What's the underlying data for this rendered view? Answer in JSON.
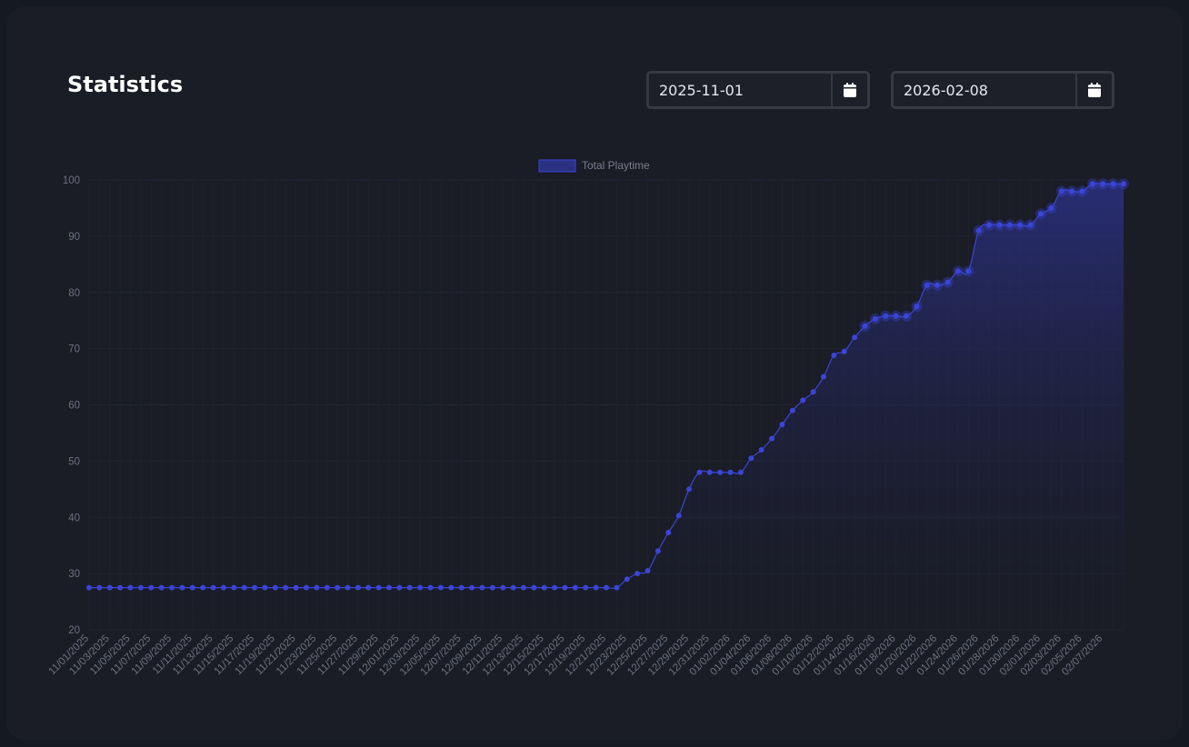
{
  "page": {
    "title": "Statistics"
  },
  "filters": {
    "start_date": "2025-11-01",
    "end_date": "2026-02-08",
    "calendar_icon": "calendar-icon"
  },
  "colors": {
    "background": "#151922",
    "card": "#1a1c26",
    "line": "#3a45d6",
    "point": "#3a45d6",
    "fill_top": "#2a3082",
    "grid": "#232634",
    "tick_text": "#6e7280"
  },
  "chart_data": {
    "type": "area",
    "legend": {
      "position": "top-center",
      "label": "Total Playtime"
    },
    "grid": true,
    "ylim": [
      20,
      100
    ],
    "yticks": [
      20,
      30,
      40,
      50,
      60,
      70,
      80,
      90,
      100
    ],
    "xlabels": [
      "11/01/2025",
      "11/03/2025",
      "11/05/2025",
      "11/07/2025",
      "11/09/2025",
      "11/11/2025",
      "11/13/2025",
      "11/15/2025",
      "11/17/2025",
      "11/19/2025",
      "11/21/2025",
      "11/23/2025",
      "11/25/2025",
      "11/27/2025",
      "11/29/2025",
      "12/01/2025",
      "12/03/2025",
      "12/05/2025",
      "12/07/2025",
      "12/09/2025",
      "12/11/2025",
      "12/13/2025",
      "12/15/2025",
      "12/17/2025",
      "12/19/2025",
      "12/21/2025",
      "12/23/2025",
      "12/25/2025",
      "12/27/2025",
      "12/29/2025",
      "12/31/2025",
      "01/02/2026",
      "01/04/2026",
      "01/06/2026",
      "01/08/2026",
      "01/10/2026",
      "01/12/2026",
      "01/14/2026",
      "01/16/2026",
      "01/18/2026",
      "01/20/2026",
      "01/22/2026",
      "01/24/2026",
      "01/26/2026",
      "01/28/2026",
      "01/30/2026",
      "02/01/2026",
      "02/03/2026",
      "02/05/2026",
      "02/07/2026"
    ],
    "series": [
      {
        "name": "Total Playtime",
        "values": [
          27.5,
          27.5,
          27.5,
          27.5,
          27.5,
          27.5,
          27.5,
          27.5,
          27.5,
          27.5,
          27.5,
          27.5,
          27.5,
          27.5,
          27.5,
          27.5,
          27.5,
          27.5,
          27.5,
          27.5,
          27.5,
          27.5,
          27.5,
          27.5,
          27.5,
          27.5,
          27.5,
          27.5,
          27.5,
          27.5,
          27.5,
          27.5,
          27.5,
          27.5,
          27.5,
          27.5,
          27.5,
          27.5,
          27.5,
          27.5,
          27.5,
          27.5,
          27.5,
          27.5,
          27.5,
          27.5,
          27.5,
          27.5,
          27.5,
          27.5,
          27.5,
          27.5,
          29.0,
          30.0,
          30.5,
          34.0,
          37.3,
          40.3,
          45.0,
          48.0,
          48.0,
          48.0,
          48.0,
          48.0,
          50.5,
          52.0,
          54.0,
          56.5,
          59.0,
          60.8,
          62.3,
          65.0,
          68.8,
          69.5,
          72.0,
          74.0,
          75.3,
          75.8,
          75.8,
          75.8,
          77.5,
          81.3,
          81.3,
          81.8,
          83.8,
          83.8,
          91.0,
          92.0,
          92.0,
          92.0,
          92.0,
          92.0,
          94.0,
          95.0,
          98.0,
          98.0,
          98.0,
          99.3,
          99.3,
          99.3,
          99.3
        ]
      }
    ]
  }
}
